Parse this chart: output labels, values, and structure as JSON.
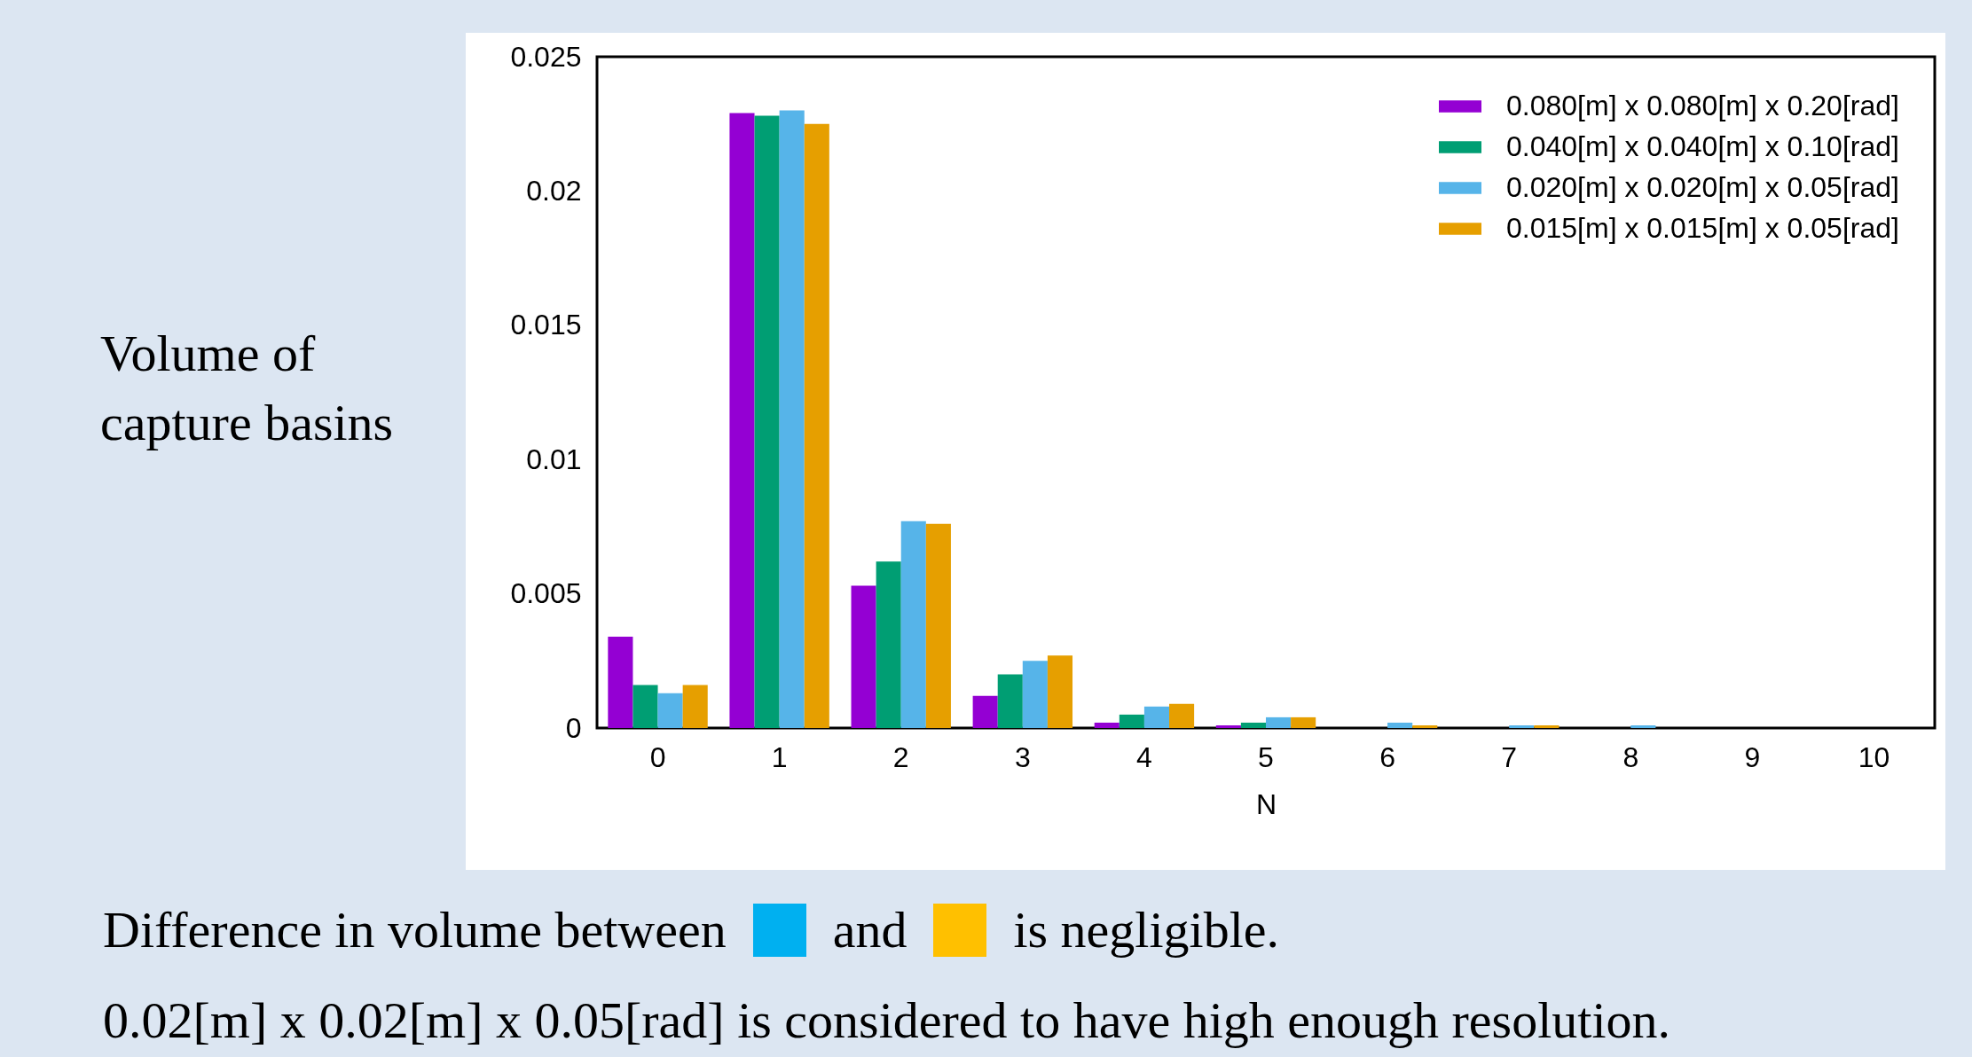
{
  "chart_data": {
    "type": "bar",
    "xlabel": "N",
    "ylabel": "Volume of capture basins",
    "categories": [
      "0",
      "1",
      "2",
      "3",
      "4",
      "5",
      "6",
      "7",
      "8",
      "9",
      "10"
    ],
    "series": [
      {
        "name": "0.080[m] x 0.080[m] x 0.20[rad]",
        "color": "#9400d3",
        "values": [
          0.0034,
          0.0229,
          0.0053,
          0.0012,
          0.0002,
          0.0001,
          0,
          0,
          0,
          0,
          0
        ]
      },
      {
        "name": "0.040[m] x 0.040[m] x 0.10[rad]",
        "color": "#009e73",
        "values": [
          0.0016,
          0.0228,
          0.0062,
          0.002,
          0.0005,
          0.0002,
          0,
          0,
          0,
          0,
          0
        ]
      },
      {
        "name": "0.020[m] x 0.020[m] x 0.05[rad]",
        "color": "#56b4e9",
        "values": [
          0.0013,
          0.023,
          0.0077,
          0.0025,
          0.0008,
          0.0004,
          0.0002,
          0.0001,
          0.0001,
          0,
          0
        ]
      },
      {
        "name": "0.015[m] x 0.015[m] x 0.05[rad]",
        "color": "#e69f00",
        "values": [
          0.0016,
          0.0225,
          0.0076,
          0.0027,
          0.0009,
          0.0004,
          0.0001,
          0.0001,
          0,
          0,
          0
        ]
      }
    ],
    "ylim": [
      0,
      0.025
    ],
    "yticks": [
      0,
      0.005,
      0.01,
      0.015,
      0.02,
      0.025
    ],
    "legend": "top right",
    "annotations": [
      "Difference in volume between",
      "and",
      "is negligible.",
      "0.02[m] x 0.02[m] x 0.05[rad] is considered to have high enough resolution."
    ]
  }
}
